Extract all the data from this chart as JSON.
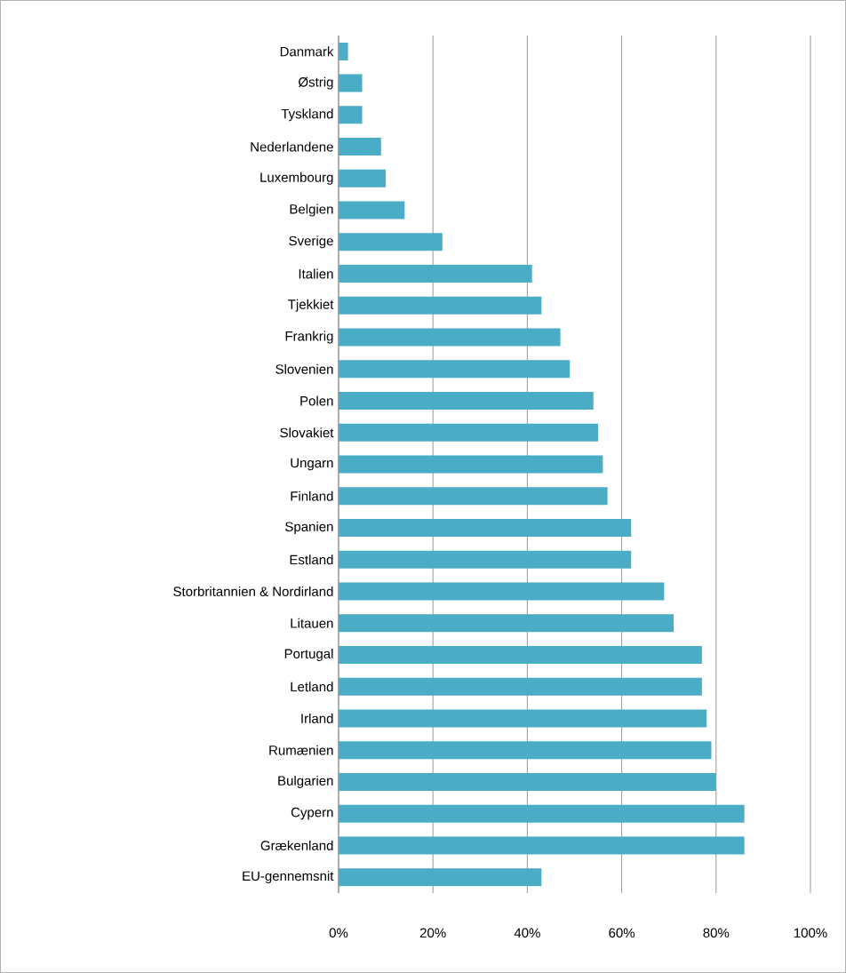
{
  "chart_data": {
    "type": "bar",
    "orientation": "horizontal",
    "categories": [
      "Danmark",
      "Østrig",
      "Tyskland",
      "Nederlandene",
      "Luxembourg",
      "Belgien",
      "Sverige",
      "Italien",
      "Tjekkiet",
      "Frankrig",
      "Slovenien",
      "Polen",
      "Slovakiet",
      "Ungarn",
      "Finland",
      "Spanien",
      "Estland",
      "Storbritannien & Nordirland",
      "Litauen",
      "Portugal",
      "Letland",
      "Irland",
      "Rumænien",
      "Bulgarien",
      "Cypern",
      "Grækenland",
      "EU-gennemsnit"
    ],
    "values": [
      2,
      5,
      5,
      9,
      10,
      14,
      22,
      41,
      43,
      47,
      49,
      54,
      55,
      56,
      57,
      62,
      62,
      69,
      71,
      77,
      77,
      78,
      79,
      80,
      86,
      86,
      43
    ],
    "color": "#4bacc6",
    "xlim": [
      0,
      100
    ],
    "xticks": [
      {
        "value": 0,
        "label": "0%"
      },
      {
        "value": 20,
        "label": "20%"
      },
      {
        "value": 40,
        "label": "40%"
      },
      {
        "value": 60,
        "label": "60%"
      },
      {
        "value": 80,
        "label": "80%"
      },
      {
        "value": 100,
        "label": "100%"
      }
    ],
    "grid": "x"
  }
}
